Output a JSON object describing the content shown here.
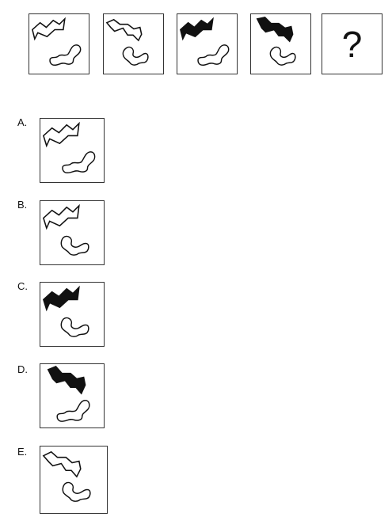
{
  "sequence": {
    "question_mark": "?"
  },
  "options": [
    {
      "label": "A."
    },
    {
      "label": "B."
    },
    {
      "label": "C."
    },
    {
      "label": "D."
    },
    {
      "label": "E."
    }
  ]
}
